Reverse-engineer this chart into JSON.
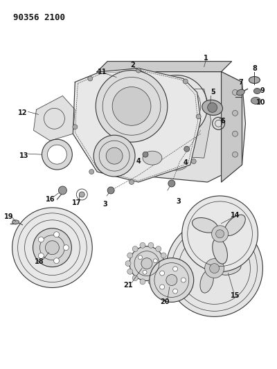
{
  "title": "90356 2100",
  "bg_color": "#ffffff",
  "line_color": "#333333",
  "label_color": "#111111",
  "fig_width": 4.0,
  "fig_height": 5.33,
  "dpi": 100
}
